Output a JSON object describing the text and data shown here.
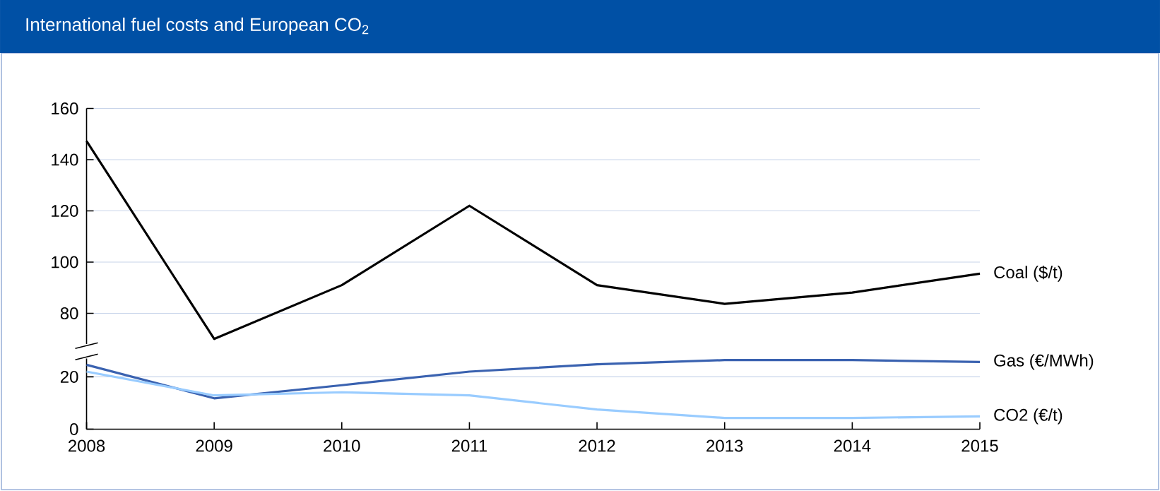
{
  "chart_data": [
    {
      "type": "line",
      "title": "International fuel costs and European CO$_{2}$",
      "categories": [
        "2008",
        "2009",
        "2010",
        "2011",
        "2012",
        "2013",
        "2014",
        "2015"
      ],
      "ylim": [
        68,
        160
      ],
      "yticks": [
        80,
        100,
        120,
        140,
        160
      ],
      "grid": "y",
      "tick_labels": "y",
      "series": [
        {
          "name": "Coal ($/t)",
          "color": "#000000",
          "values": [
            147.3,
            70,
            91,
            122,
            91,
            83.7,
            88.1,
            95.5
          ]
        }
      ]
    },
    {
      "type": "line",
      "categories": [
        "2008",
        "2009",
        "2010",
        "2011",
        "2012",
        "2013",
        "2014",
        "2015"
      ],
      "ylim": [
        0,
        27
      ],
      "yticks": [
        0,
        20
      ],
      "grid": "y",
      "series": [
        {
          "name": "Gas (€/MWh)",
          "color": "#3a62b0",
          "values": [
            24.6,
            11.8,
            16.8,
            22,
            24.8,
            26.4,
            26.4,
            25.7
          ]
        },
        {
          "name": "CO2 (€/t)",
          "color": "#99ccff",
          "values": [
            22,
            12.9,
            14.1,
            12.9,
            7.5,
            4.3,
            4.3,
            4.9
          ]
        }
      ]
    }
  ]
}
